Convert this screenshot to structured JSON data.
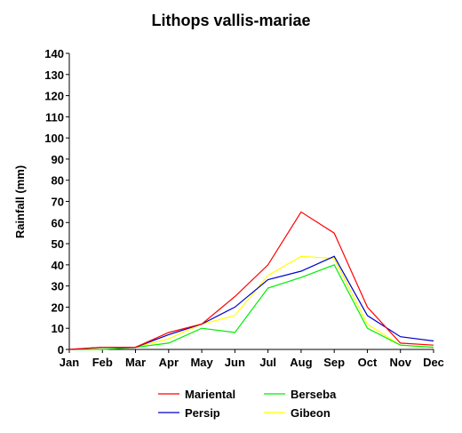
{
  "chart_data": {
    "type": "line",
    "title": "Lithops vallis-mariae",
    "xlabel": "",
    "ylabel": "Rainfall (mm)",
    "ylim": [
      0,
      140
    ],
    "yticks": [
      0,
      10,
      20,
      30,
      40,
      50,
      60,
      70,
      80,
      90,
      100,
      110,
      120,
      130,
      140
    ],
    "categories": [
      "Jan",
      "Feb",
      "Mar",
      "Apr",
      "May",
      "Jun",
      "Jul",
      "Aug",
      "Sep",
      "Oct",
      "Nov",
      "Dec"
    ],
    "grid": false,
    "legend_position": "bottom",
    "series": [
      {
        "name": "Mariental",
        "color": "#ff0000",
        "values": [
          0,
          1,
          1,
          8,
          12,
          25,
          40,
          65,
          55,
          20,
          3,
          2
        ]
      },
      {
        "name": "Persip",
        "color": "#0000cc",
        "values": [
          0,
          1,
          1,
          7,
          12,
          20,
          33,
          37,
          44,
          16,
          6,
          4
        ]
      },
      {
        "name": "Berseba",
        "color": "#00ee00",
        "values": [
          0,
          0,
          1,
          3,
          10,
          8,
          29,
          34,
          40,
          10,
          2,
          1
        ]
      },
      {
        "name": "Gibeon",
        "color": "#ffff00",
        "values": [
          0,
          0,
          1,
          5,
          12,
          16,
          35,
          44,
          43,
          12,
          2,
          1
        ]
      }
    ]
  }
}
